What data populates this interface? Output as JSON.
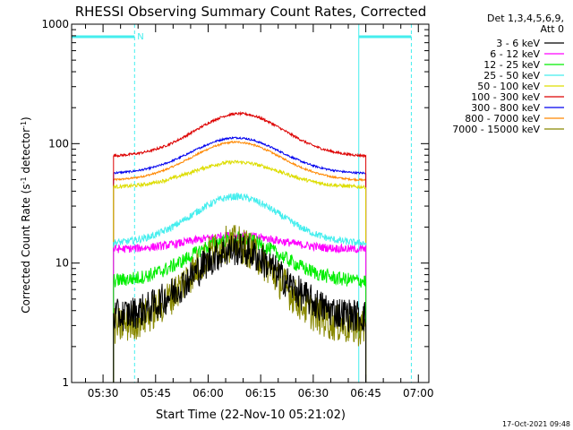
{
  "chart_data": {
    "type": "line",
    "title": "RHESSI Observing Summary Count Rates, Corrected",
    "xlabel": "Start Time (22-Nov-10 05:21:02)",
    "ylabel_main": "Corrected Count Rate (s",
    "ylabel_sup1": "-1",
    "ylabel_mid": " detector",
    "ylabel_sup2": "-1",
    "ylabel_end": ")",
    "yscale": "log",
    "ylim": [
      1,
      1000
    ],
    "y_ticks": [
      {
        "value": 1,
        "label": "1"
      },
      {
        "value": 10,
        "label": "10"
      },
      {
        "value": 100,
        "label": "100"
      },
      {
        "value": 1000,
        "label": "1000"
      }
    ],
    "xlim": [
      "05:21:02",
      "07:03:00"
    ],
    "x_ticks": [
      {
        "time": "05:30",
        "label": "05:30"
      },
      {
        "time": "05:45",
        "label": "05:45"
      },
      {
        "time": "06:00",
        "label": "06:00"
      },
      {
        "time": "06:15",
        "label": "06:15"
      },
      {
        "time": "06:30",
        "label": "06:30"
      },
      {
        "time": "06:45",
        "label": "06:45"
      },
      {
        "time": "07:00",
        "label": "07:00"
      }
    ],
    "legend": {
      "placement": "right",
      "header": [
        "Det 1,3,4,5,6,9,",
        "Att 0"
      ],
      "entries": [
        {
          "label": "3 - 6 keV",
          "color": "#000000"
        },
        {
          "label": "6 - 12 keV",
          "color": "#ff00ff"
        },
        {
          "label": "12 - 25 keV",
          "color": "#00ee00"
        },
        {
          "label": "25 - 50 keV",
          "color": "#44eeee"
        },
        {
          "label": "50 - 100 keV",
          "color": "#dddd00"
        },
        {
          "label": "100 - 300 keV",
          "color": "#dd0000"
        },
        {
          "label": "300 - 800 keV",
          "color": "#0000ee"
        },
        {
          "label": "800 - 7000 keV",
          "color": "#ff8800"
        },
        {
          "label": "7000 - 15000 keV",
          "color": "#888800"
        }
      ]
    },
    "annotations": {
      "night_marker": "N",
      "night_bars": [
        {
          "start": "05:21:02",
          "end": "05:39:00"
        },
        {
          "start": "06:43:00",
          "end": "06:58:00"
        }
      ],
      "solid_cyan_lines": [
        "05:21:02",
        "06:43:00"
      ],
      "dashed_cyan_lines": [
        "05:39:00",
        "06:58:00"
      ],
      "footer_date": "17-Oct-2021 09:48"
    },
    "series": [
      {
        "label": "3 - 6 keV",
        "color": "#000000",
        "start": "05:33",
        "end": "06:45",
        "baseline": 3.5,
        "peak_time": "06:08",
        "peak": 13,
        "noise": 0.14
      },
      {
        "label": "6 - 12 keV",
        "color": "#ff00ff",
        "start": "05:33",
        "end": "06:45",
        "baseline": 13,
        "peak_time": "06:08",
        "peak": 17,
        "noise": 0.035
      },
      {
        "label": "12 - 25 keV",
        "color": "#00ee00",
        "start": "05:33",
        "end": "06:45",
        "baseline": 7,
        "peak_time": "06:08",
        "peak": 16,
        "noise": 0.06
      },
      {
        "label": "25 - 50 keV",
        "color": "#44eeee",
        "start": "05:33",
        "end": "06:45",
        "baseline": 14.5,
        "peak_time": "06:08",
        "peak": 36,
        "noise": 0.03
      },
      {
        "label": "50 - 100 keV",
        "color": "#dddd00",
        "start": "05:33",
        "end": "06:45",
        "baseline": 43,
        "peak_time": "06:08",
        "peak": 70,
        "noise": 0.015
      },
      {
        "label": "100 - 300 keV",
        "color": "#dd0000",
        "start": "05:33",
        "end": "06:45",
        "baseline": 78,
        "peak_time": "06:09",
        "peak": 178,
        "noise": 0.01
      },
      {
        "label": "300 - 800 keV",
        "color": "#0000ee",
        "start": "05:33",
        "end": "06:45",
        "baseline": 56,
        "peak_time": "06:08",
        "peak": 112,
        "noise": 0.008
      },
      {
        "label": "800 - 7000 keV",
        "color": "#ff8800",
        "start": "05:33",
        "end": "06:45",
        "baseline": 49,
        "peak_time": "06:08",
        "peak": 103,
        "noise": 0.008
      },
      {
        "label": "7000 - 15000 keV",
        "color": "#888800",
        "start": "05:33",
        "end": "06:45",
        "baseline": 2.8,
        "peak_time": "06:07",
        "peak": 14.5,
        "noise": 0.16
      }
    ]
  }
}
